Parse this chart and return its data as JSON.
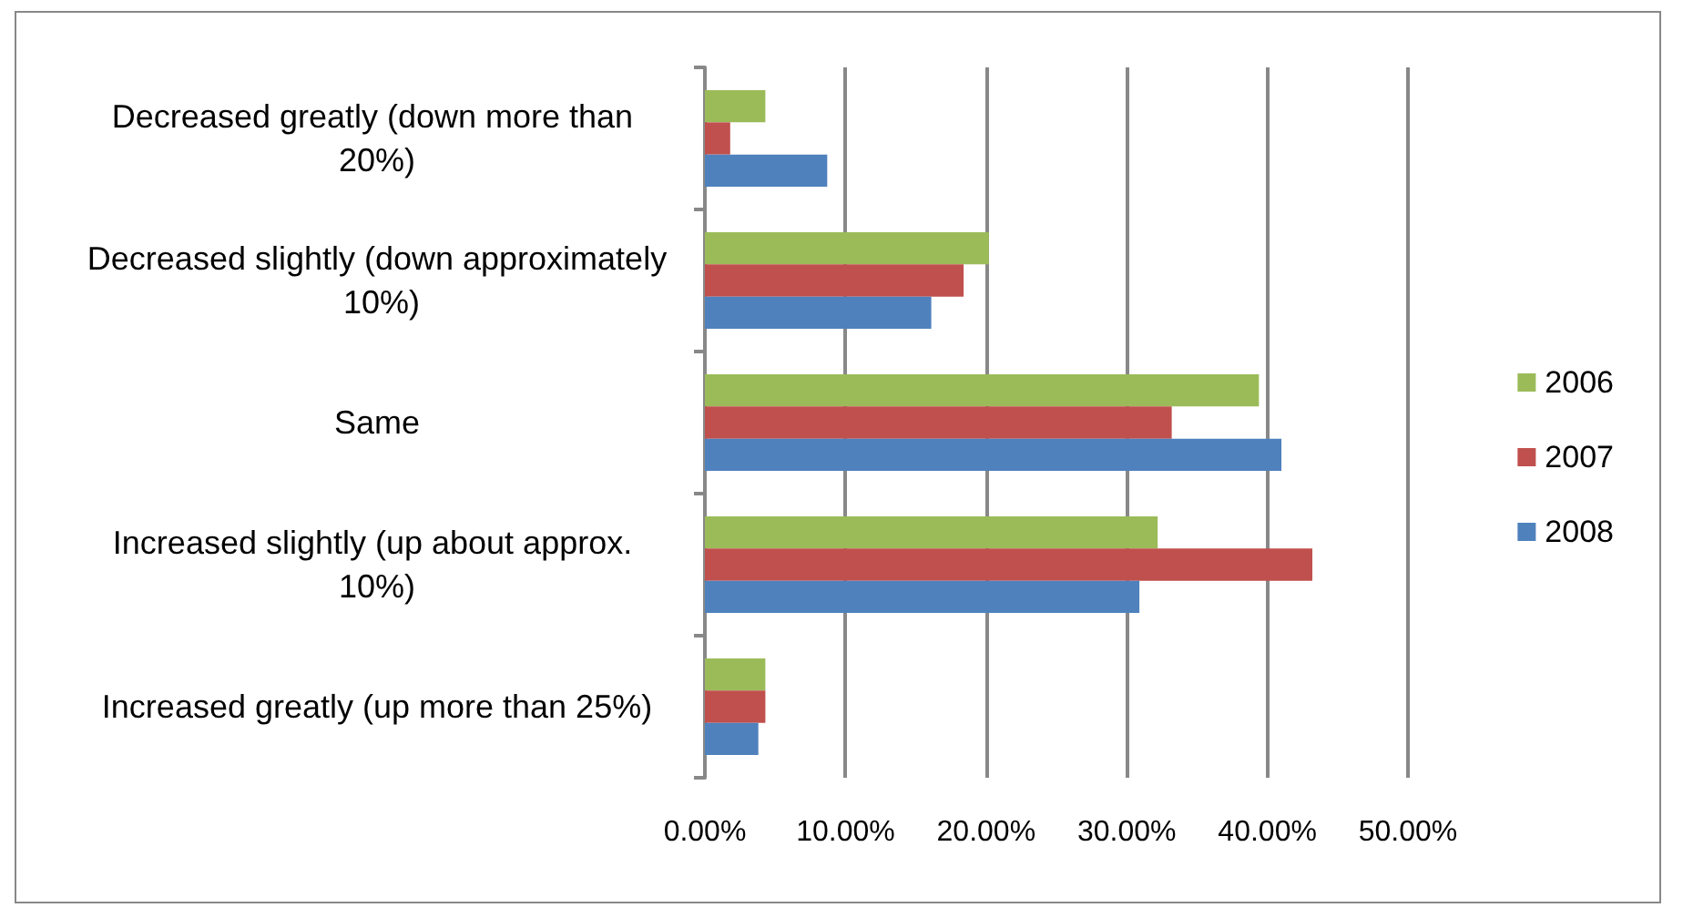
{
  "chart_data": {
    "type": "bar",
    "orientation": "horizontal",
    "categories": [
      "Decreased greatly (down more than 20%)",
      "Decreased slightly (down approximately 10%)",
      "Same",
      "Increased slightly (up about approx. 10%)",
      "Increased greatly (up more than 25%)"
    ],
    "series": [
      {
        "name": "2006",
        "color": "#9bbb59",
        "values": [
          4.3,
          20.2,
          39.4,
          32.2,
          4.3
        ]
      },
      {
        "name": "2007",
        "color": "#c0504d",
        "values": [
          1.8,
          18.4,
          33.2,
          43.2,
          4.3
        ]
      },
      {
        "name": "2008",
        "color": "#4f81bd",
        "values": [
          8.7,
          16.1,
          41.0,
          30.9,
          3.8
        ]
      }
    ],
    "xlim": [
      0,
      50
    ],
    "xticks": [
      {
        "value": 0,
        "label": "0.00%"
      },
      {
        "value": 10,
        "label": "10.00%"
      },
      {
        "value": 20,
        "label": "20.00%"
      },
      {
        "value": 30,
        "label": "30.00%"
      },
      {
        "value": 40,
        "label": "40.00%"
      },
      {
        "value": 50,
        "label": "50.00%"
      }
    ],
    "grid": "x",
    "legend": "right"
  }
}
